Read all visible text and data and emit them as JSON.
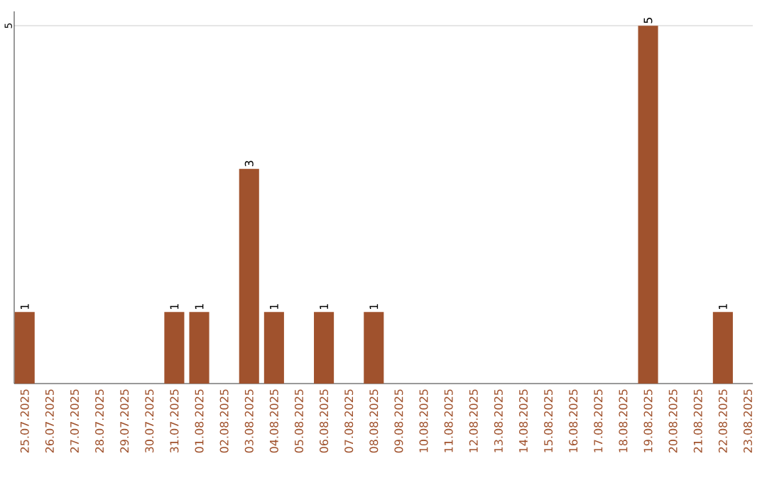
{
  "chart_data": {
    "type": "bar",
    "categories": [
      "25.07.2025",
      "26.07.2025",
      "27.07.2025",
      "28.07.2025",
      "29.07.2025",
      "30.07.2025",
      "31.07.2025",
      "01.08.2025",
      "02.08.2025",
      "03.08.2025",
      "04.08.2025",
      "05.08.2025",
      "06.08.2025",
      "07.08.2025",
      "08.08.2025",
      "09.08.2025",
      "10.08.2025",
      "11.08.2025",
      "12.08.2025",
      "13.08.2025",
      "14.08.2025",
      "15.08.2025",
      "16.08.2025",
      "17.08.2025",
      "18.08.2025",
      "19.08.2025",
      "20.08.2025",
      "21.08.2025",
      "22.08.2025",
      "23.08.2025"
    ],
    "values": [
      1,
      0,
      0,
      0,
      0,
      0,
      1,
      1,
      0,
      3,
      1,
      0,
      1,
      0,
      1,
      0,
      0,
      0,
      0,
      0,
      0,
      0,
      0,
      0,
      0,
      5,
      0,
      0,
      1,
      0
    ],
    "value_labels": [
      "1",
      null,
      null,
      null,
      null,
      null,
      "1",
      "1",
      null,
      "3",
      "1",
      null,
      "1",
      null,
      "1",
      null,
      null,
      null,
      null,
      null,
      null,
      null,
      null,
      null,
      null,
      "5",
      null,
      null,
      "1",
      null
    ],
    "color": "#a0522d",
    "ylim": [
      0,
      5.2
    ],
    "yticks": [
      5
    ],
    "grid": "y",
    "legend": false
  }
}
